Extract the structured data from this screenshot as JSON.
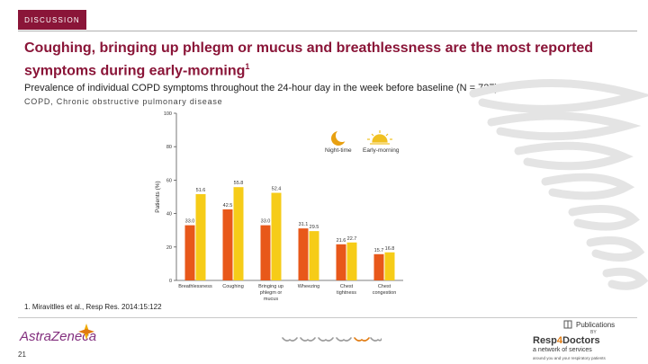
{
  "slide": {
    "section": "DISCUSSION",
    "title": "Coughing, bringing up phlegm or mucus and breathlessness are the most reported symptoms during early-morning",
    "title_sup": "1",
    "subtitle": "Prevalence of individual COPD symptoms throughout the 24-hour day in the week before baseline (N = 727).",
    "abbreviation": "COPD, Chronic obstructive pulmonary disease",
    "reference": "1. Miravitlles et al., Resp Res. 2014:15:122",
    "page_number": "21"
  },
  "footer": {
    "logo": "AstraZeneca",
    "publications": "Publications",
    "by": "BY",
    "brand_prefix": "Resp",
    "brand_number": "4",
    "brand_suffix": "Doctors",
    "brand_tagline": "a network of services",
    "brand_small": "around you and your respiratory patients"
  },
  "legend_labels": [
    "Night-time",
    "Early-morning"
  ],
  "chart_data": {
    "type": "bar",
    "ylabel": "Patients (%)",
    "ylim": [
      0,
      100
    ],
    "yticks": [
      0,
      20,
      40,
      60,
      80,
      100
    ],
    "categories": [
      [
        "Breathlessness"
      ],
      [
        "Coughing"
      ],
      [
        "Bringing up",
        "phlegm or",
        "mucus"
      ],
      [
        "Wheezing"
      ],
      [
        "Chest",
        "tightness"
      ],
      [
        "Chest",
        "congestion"
      ]
    ],
    "series": [
      {
        "name": "Night-time",
        "color": "#e8581a",
        "values": [
          33.0,
          42.5,
          33.0,
          31.1,
          21.6,
          15.7
        ],
        "labels": [
          "33.0",
          "42.5",
          "33.0",
          "31.1",
          "21.6",
          "15.7"
        ]
      },
      {
        "name": "Early-morning",
        "color": "#f6cc18",
        "values": [
          51.6,
          55.8,
          52.4,
          29.5,
          22.7,
          16.8
        ],
        "labels": [
          "51.6",
          "55.8",
          "52.4",
          "29.5",
          "22.7",
          "16.8"
        ]
      }
    ]
  }
}
